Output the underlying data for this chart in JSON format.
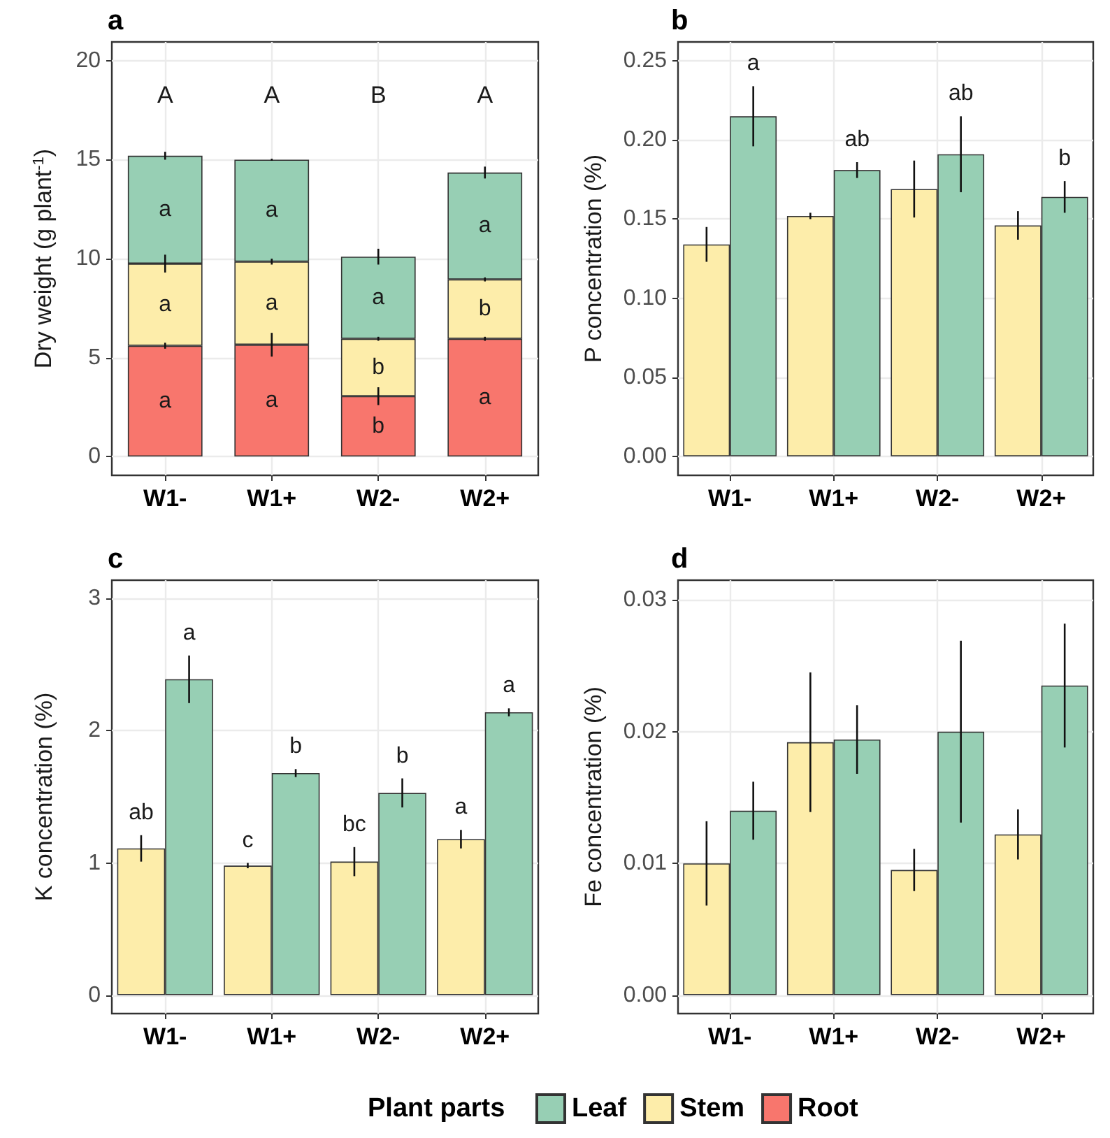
{
  "chart_data": [
    {
      "type": "bar",
      "stacked": true,
      "title": "a",
      "ylabel": "Dry weight (g plant$^{-1}$)",
      "categories": [
        "W1-",
        "W1+",
        "W2-",
        "W2+"
      ],
      "series": [
        {
          "name": "Root",
          "color": "#f8766d",
          "values": [
            5.6,
            5.65,
            3.05,
            5.95
          ],
          "errors": [
            0.15,
            0.6,
            0.45,
            0.1
          ],
          "value_labels": [
            "a",
            "a",
            "b",
            "a"
          ]
        },
        {
          "name": "Stem",
          "color": "#fdedaa",
          "values": [
            4.15,
            4.2,
            2.9,
            3.0
          ],
          "errors": [
            0.45,
            0.15,
            0.1,
            0.1
          ],
          "value_labels": [
            "a",
            "a",
            "b",
            "b"
          ]
        },
        {
          "name": "Leaf",
          "color": "#97cfb4",
          "values": [
            5.45,
            5.15,
            4.15,
            5.4
          ],
          "errors": [
            0.2,
            0.05,
            0.4,
            0.3
          ],
          "value_labels": [
            "a",
            "a",
            "a",
            "a"
          ]
        }
      ],
      "ylim": [
        -0.95,
        20.95
      ],
      "yticks": [
        0,
        5,
        10,
        15,
        20
      ],
      "grid": true,
      "legend": "bottom",
      "legend_title": "Plant parts",
      "annotations": [
        "A",
        "A",
        "B",
        "A"
      ]
    },
    {
      "type": "bar",
      "title": "b",
      "ylabel": "P concentration (%)",
      "categories": [
        "W1-",
        "W1+",
        "W2-",
        "W2+"
      ],
      "series": [
        {
          "color": "#fdedaa",
          "values": [
            0.134,
            0.152,
            0.169,
            0.146
          ],
          "errors": [
            0.011,
            0.002,
            0.018,
            0.009
          ]
        },
        {
          "color": "#97cfb4",
          "values": [
            0.215,
            0.181,
            0.191,
            0.164
          ],
          "errors": [
            0.019,
            0.005,
            0.024,
            0.01
          ],
          "value_labels": [
            "a",
            "ab",
            "ab",
            "b"
          ]
        }
      ],
      "ylim": [
        -0.012,
        0.262
      ],
      "yticks": [
        {
          "value": 0,
          "label": "0.00"
        },
        0.05,
        {
          "value": 0.1,
          "label": "0.10"
        },
        0.15,
        {
          "value": 0.2,
          "label": "0.20"
        },
        0.25
      ],
      "grid": true
    },
    {
      "type": "bar",
      "title": "c",
      "ylabel": "K concentration (%)",
      "categories": [
        "W1-",
        "W1+",
        "W2-",
        "W2+"
      ],
      "series": [
        {
          "color": "#fdedaa",
          "values": [
            1.11,
            0.98,
            1.01,
            1.18
          ],
          "errors": [
            0.1,
            0.02,
            0.11,
            0.07
          ],
          "value_labels": [
            "ab",
            "c",
            "bc",
            "a"
          ]
        },
        {
          "color": "#97cfb4",
          "values": [
            2.39,
            1.68,
            1.53,
            2.14
          ],
          "errors": [
            0.18,
            0.03,
            0.11,
            0.03
          ],
          "value_labels": [
            "a",
            "b",
            "b",
            "a"
          ]
        }
      ],
      "ylim": [
        -0.14,
        3.14
      ],
      "yticks": [
        0,
        1,
        2,
        3
      ],
      "grid": true
    },
    {
      "type": "bar",
      "title": "d",
      "ylabel": "Fe concentration (%)",
      "categories": [
        "W1-",
        "W1+",
        "W2-",
        "W2+"
      ],
      "series": [
        {
          "color": "#fdedaa",
          "values": [
            0.01,
            0.0192,
            0.0095,
            0.0122
          ],
          "errors": [
            0.0032,
            0.0053,
            0.0016,
            0.0019
          ]
        },
        {
          "color": "#97cfb4",
          "values": [
            0.014,
            0.0194,
            0.02,
            0.0235
          ],
          "errors": [
            0.0022,
            0.0026,
            0.0069,
            0.0047
          ]
        }
      ],
      "ylim": [
        -0.0014,
        0.0315
      ],
      "yticks": [
        {
          "value": 0,
          "label": "0.00"
        },
        0.01,
        0.02,
        0.03
      ],
      "grid": true
    }
  ]
}
